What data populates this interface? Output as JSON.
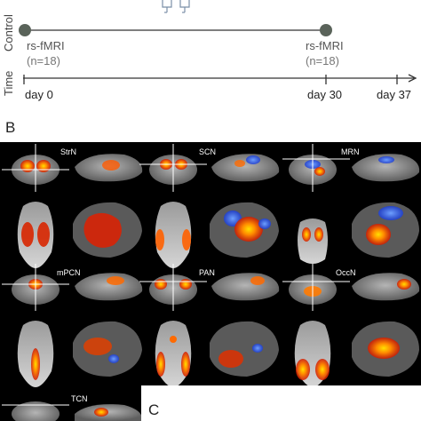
{
  "panel_a": {
    "row_labels": {
      "control": "Control",
      "time": "Time"
    },
    "scan_start": {
      "label": "rs-fMRI",
      "n": "(n=18)"
    },
    "scan_end": {
      "label": "rs-fMRI",
      "n": "(n=18)"
    },
    "days": [
      "day 0",
      "day 30",
      "day 37"
    ]
  },
  "panel_b": {
    "label": "B",
    "networks": [
      "StrN",
      "SCN",
      "MRN",
      "mPCN",
      "PAN",
      "OccN",
      "TCN"
    ]
  },
  "panel_c": {
    "label": "C"
  },
  "colors": {
    "timeline": "#333333",
    "marker": "#5a635a",
    "text_gray": "#555555",
    "activation_hot": "#ff6a00",
    "activation_core": "#ffd200",
    "activation_cool": "#2f6bff",
    "brain_gray": "#8c8c8c"
  }
}
